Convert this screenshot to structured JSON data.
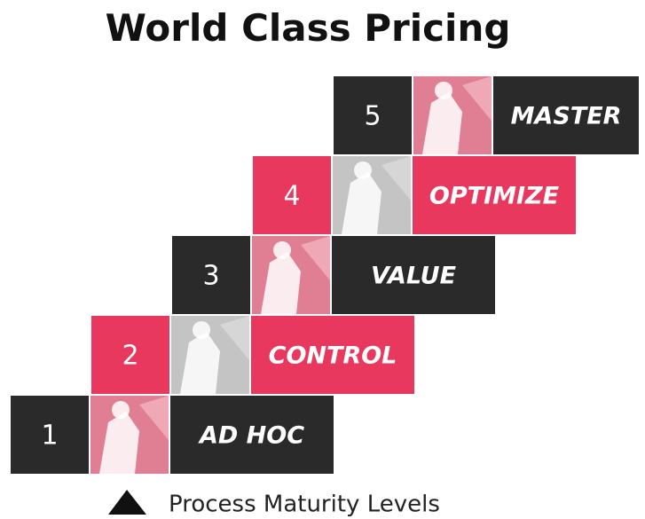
{
  "title": "World Class Pricing",
  "levels": [
    {
      "number": "1",
      "label": "AD HOC"
    },
    {
      "number": "2",
      "label": "CONTROL"
    },
    {
      "number": "3",
      "label": "VALUE"
    },
    {
      "number": "4",
      "label": "OPTIMIZE"
    },
    {
      "number": "5",
      "label": "MASTER"
    }
  ],
  "legend": "Process Maturity Levels"
}
